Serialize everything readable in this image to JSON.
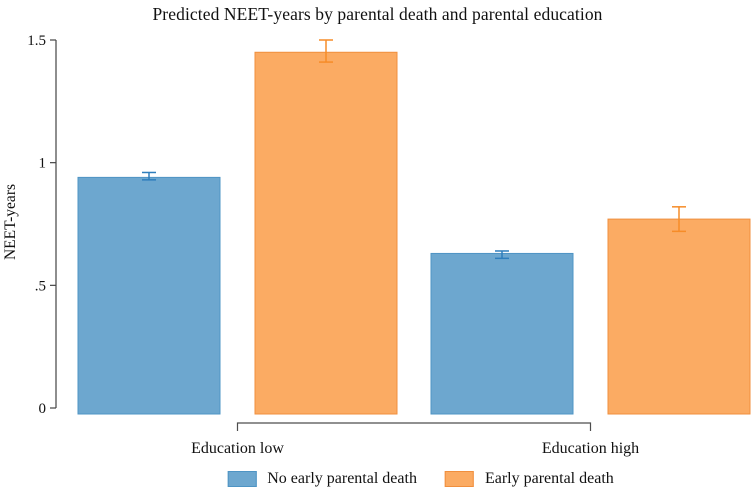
{
  "chart_data": {
    "type": "bar",
    "title": "Predicted NEET-years by parental death and parental education",
    "xlabel": "",
    "ylabel": "NEET-years",
    "ylim": [
      0,
      1.5
    ],
    "yticks": [
      {
        "value": 0,
        "label": "0"
      },
      {
        "value": 0.5,
        "label": ".5"
      },
      {
        "value": 1,
        "label": "1"
      },
      {
        "value": 1.5,
        "label": "1.5"
      }
    ],
    "categories": [
      "Education low",
      "Education high"
    ],
    "series": [
      {
        "name": "No early parental death",
        "fill_color": "#6DA7CF",
        "edge_color": "#4E94C4",
        "error_color": "#2F7EBC",
        "values": [
          0.94,
          0.63
        ],
        "ci_low": [
          0.93,
          0.61
        ],
        "ci_high": [
          0.96,
          0.64
        ]
      },
      {
        "name": "Early parental death",
        "fill_color": "#FBAB63",
        "edge_color": "#F08F3E",
        "error_color": "#F68C28",
        "values": [
          1.45,
          0.77
        ],
        "ci_low": [
          1.41,
          0.72
        ],
        "ci_high": [
          1.5,
          0.82
        ]
      }
    ],
    "legend_position": "bottom-center",
    "grid": false,
    "error_bars": true
  }
}
